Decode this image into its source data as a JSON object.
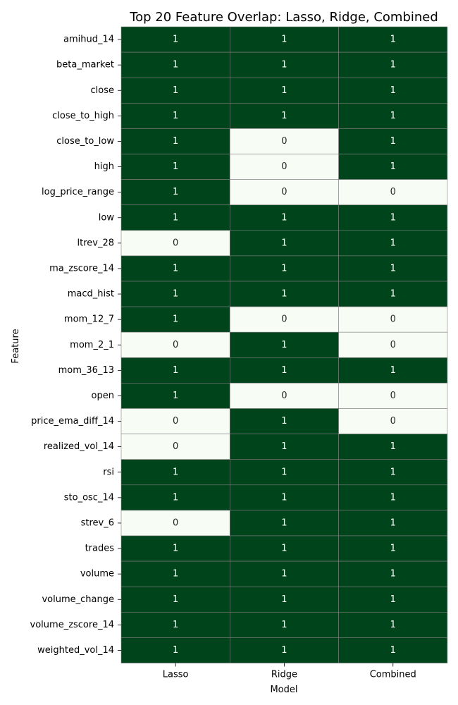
{
  "chart_data": {
    "type": "heatmap",
    "title": "Top 20 Feature Overlap: Lasso, Ridge, Combined",
    "xlabel": "Model",
    "ylabel": "Feature",
    "columns": [
      "Lasso",
      "Ridge",
      "Combined"
    ],
    "rows": [
      "amihud_14",
      "beta_market",
      "close",
      "close_to_high",
      "close_to_low",
      "high",
      "log_price_range",
      "low",
      "ltrev_28",
      "ma_zscore_14",
      "macd_hist",
      "mom_12_7",
      "mom_2_1",
      "mom_36_13",
      "open",
      "price_ema_diff_14",
      "realized_vol_14",
      "rsi",
      "sto_osc_14",
      "strev_6",
      "trades",
      "volume",
      "volume_change",
      "volume_zscore_14",
      "weighted_vol_14"
    ],
    "values": [
      [
        1,
        1,
        1
      ],
      [
        1,
        1,
        1
      ],
      [
        1,
        1,
        1
      ],
      [
        1,
        1,
        1
      ],
      [
        1,
        0,
        1
      ],
      [
        1,
        0,
        1
      ],
      [
        1,
        0,
        0
      ],
      [
        1,
        1,
        1
      ],
      [
        0,
        1,
        1
      ],
      [
        1,
        1,
        1
      ],
      [
        1,
        1,
        1
      ],
      [
        1,
        0,
        0
      ],
      [
        0,
        1,
        0
      ],
      [
        1,
        1,
        1
      ],
      [
        1,
        0,
        0
      ],
      [
        0,
        1,
        0
      ],
      [
        0,
        1,
        1
      ],
      [
        1,
        1,
        1
      ],
      [
        1,
        1,
        1
      ],
      [
        0,
        1,
        1
      ],
      [
        1,
        1,
        1
      ],
      [
        1,
        1,
        1
      ],
      [
        1,
        1,
        1
      ],
      [
        1,
        1,
        1
      ],
      [
        1,
        1,
        1
      ]
    ],
    "colors": {
      "one": "#00441b",
      "zero": "#f7fcf5",
      "grid": "#808080",
      "text_on_dark": "#ffffff",
      "text_on_light": "#262626"
    },
    "legend": "none",
    "grid": true
  }
}
